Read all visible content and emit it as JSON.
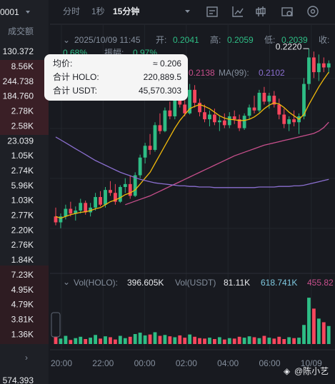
{
  "sidebar": {
    "symbol": "0001",
    "header": "成交额",
    "rows": [
      "130.372",
      "8.56K",
      "244.738",
      "184.760",
      "2.78K",
      "2.58K",
      "23.039",
      "1.05K",
      "2.74K",
      "5.96K",
      "1.03K",
      "2.77K",
      "2.20K",
      "2.76K",
      "1.84K",
      "7.23K",
      "4.95K",
      "4.79K",
      "3.81K",
      "1.36K"
    ],
    "footer": "574.393"
  },
  "toolbar": {
    "tabs": [
      "分时",
      "1秒",
      "15分钟"
    ]
  },
  "info": {
    "time": "2025/10/09 11:45",
    "open_label": "开:",
    "open": "0.2041",
    "high_label": "高:",
    "high": "0.2059",
    "low_label": "低:",
    "low": "0.2039",
    "close_label": "收:",
    "change": "0.68%",
    "amp_label": "振幅:",
    "amp": "0.97%"
  },
  "ma_legend": {
    "ma25_value": "0.2138",
    "ma99_label": "MA(99):",
    "ma99_value": "0.2102"
  },
  "tooltip": {
    "rows": [
      {
        "label": "均价:",
        "value": "≈ 0.206"
      },
      {
        "label": "合计 HOLO:",
        "value": "220,889.5"
      },
      {
        "label": "合计 USDT:",
        "value": "45,570.303"
      }
    ]
  },
  "volume_legend": {
    "holo_label": "Vol(HOLO):",
    "holo": "396.605K",
    "usdt_label": "Vol(USDT)",
    "usdt": "81.11K",
    "ma1": "618.741K",
    "ma2": "455.82"
  },
  "watermark": "@陈小艺",
  "chart_data": {
    "type": "candlestick",
    "ylim": [
      0.1842,
      0.2248
    ],
    "max_label": "0.2220",
    "up_color": "#2ebd85",
    "down_color": "#f6465d",
    "candles": {
      "open": [
        0.1935,
        0.1925,
        0.1935,
        0.1948,
        0.194,
        0.1945,
        0.1958,
        0.1942,
        0.195,
        0.1968,
        0.1955,
        0.198,
        0.1975,
        0.196,
        0.1985,
        0.199,
        0.197,
        0.2005,
        0.2035,
        0.2055,
        0.2048,
        0.209,
        0.208,
        0.2115,
        0.2105,
        0.2135,
        0.2125,
        0.211,
        0.215,
        0.2128,
        0.2112,
        0.21,
        0.2108,
        0.2095,
        0.2098,
        0.209,
        0.2105,
        0.21,
        0.2085,
        0.2106,
        0.212,
        0.2115,
        0.2145,
        0.213,
        0.214,
        0.2125,
        0.2108,
        0.2092,
        0.21,
        0.2095,
        0.2105,
        0.216,
        0.2205,
        0.218,
        0.2195,
        0.2188
      ],
      "high": [
        0.195,
        0.194,
        0.1955,
        0.196,
        0.1952,
        0.1965,
        0.1962,
        0.1958,
        0.1975,
        0.1978,
        0.1985,
        0.1995,
        0.199,
        0.1988,
        0.2,
        0.2005,
        0.201,
        0.204,
        0.206,
        0.2075,
        0.2095,
        0.211,
        0.212,
        0.213,
        0.214,
        0.215,
        0.2135,
        0.216,
        0.2158,
        0.2135,
        0.2125,
        0.2115,
        0.2118,
        0.2105,
        0.211,
        0.2112,
        0.2115,
        0.2108,
        0.211,
        0.2125,
        0.214,
        0.215,
        0.2155,
        0.2145,
        0.2148,
        0.2135,
        0.2118,
        0.2105,
        0.2115,
        0.211,
        0.217,
        0.222,
        0.2215,
        0.221,
        0.2205,
        0.22
      ],
      "low": [
        0.192,
        0.1915,
        0.193,
        0.1935,
        0.1928,
        0.194,
        0.1938,
        0.1935,
        0.1945,
        0.1952,
        0.195,
        0.197,
        0.1955,
        0.1958,
        0.1975,
        0.1965,
        0.1968,
        0.2,
        0.2025,
        0.204,
        0.2045,
        0.2075,
        0.2078,
        0.21,
        0.21,
        0.212,
        0.2105,
        0.2108,
        0.212,
        0.2105,
        0.2095,
        0.2088,
        0.209,
        0.208,
        0.2085,
        0.2085,
        0.2092,
        0.208,
        0.2082,
        0.21,
        0.211,
        0.2112,
        0.2125,
        0.2118,
        0.212,
        0.21,
        0.2085,
        0.208,
        0.2088,
        0.2075,
        0.21,
        0.215,
        0.217,
        0.2165,
        0.218,
        0.2178
      ],
      "close": [
        0.1925,
        0.1935,
        0.1948,
        0.194,
        0.1945,
        0.1958,
        0.1942,
        0.195,
        0.1968,
        0.1955,
        0.198,
        0.1975,
        0.196,
        0.1985,
        0.199,
        0.197,
        0.2005,
        0.2035,
        0.2055,
        0.2048,
        0.209,
        0.208,
        0.2115,
        0.2105,
        0.2135,
        0.2125,
        0.211,
        0.215,
        0.2128,
        0.2112,
        0.21,
        0.2108,
        0.2095,
        0.2098,
        0.209,
        0.2105,
        0.21,
        0.2085,
        0.2106,
        0.212,
        0.2115,
        0.2145,
        0.213,
        0.214,
        0.2125,
        0.2108,
        0.2092,
        0.21,
        0.2095,
        0.2105,
        0.216,
        0.2205,
        0.218,
        0.2195,
        0.2188,
        0.2195
      ]
    },
    "ma_lines": [
      {
        "color": "#f0b90b",
        "values": [
          0.1935,
          0.1932,
          0.1935,
          0.1938,
          0.194,
          0.1942,
          0.1943,
          0.1945,
          0.1948,
          0.195,
          0.1955,
          0.196,
          0.1963,
          0.1967,
          0.1972,
          0.1975,
          0.198,
          0.199,
          0.2,
          0.201,
          0.2025,
          0.204,
          0.2055,
          0.207,
          0.2085,
          0.2098,
          0.2108,
          0.2118,
          0.2122,
          0.2125,
          0.2122,
          0.2118,
          0.2112,
          0.2106,
          0.2102,
          0.21,
          0.2099,
          0.2098,
          0.2098,
          0.21,
          0.2104,
          0.211,
          0.2118,
          0.2124,
          0.2128,
          0.2126,
          0.212,
          0.2112,
          0.2106,
          0.21,
          0.2108,
          0.2125,
          0.214,
          0.2155,
          0.2168,
          0.218
        ]
      },
      {
        "color": "#c84f8c",
        "values": [
          null,
          null,
          null,
          null,
          null,
          null,
          null,
          null,
          null,
          null,
          null,
          null,
          null,
          null,
          0.1955,
          0.1958,
          0.1961,
          0.1964,
          0.1967,
          0.197,
          0.1974,
          0.1978,
          0.1982,
          0.1986,
          0.199,
          0.1994,
          0.1998,
          0.2002,
          0.2006,
          0.201,
          0.2014,
          0.2018,
          0.2022,
          0.2026,
          0.203,
          0.2034,
          0.2038,
          0.2041,
          0.2044,
          0.2047,
          0.205,
          0.2053,
          0.2056,
          0.2058,
          0.206,
          0.2062,
          0.2064,
          0.2066,
          0.2068,
          0.207,
          0.2072,
          0.2074,
          0.2076,
          0.208,
          0.2086,
          0.2095
        ]
      },
      {
        "color": "#8b6fd0",
        "values": [
          0.207,
          0.2065,
          0.206,
          0.2055,
          0.205,
          0.2045,
          0.204,
          0.2035,
          0.203,
          0.2026,
          0.2022,
          0.2018,
          0.2014,
          0.201,
          0.2007,
          0.2004,
          0.2001,
          0.1998,
          0.1996,
          0.1994,
          0.1992,
          0.1991,
          0.199,
          0.1989,
          0.1988,
          0.1987,
          0.1987,
          0.1986,
          0.1986,
          0.1985,
          0.1985,
          0.1985,
          0.1984,
          0.1984,
          0.1984,
          0.1984,
          0.1984,
          0.1984,
          0.1984,
          0.1984,
          0.1984,
          0.1985,
          0.1985,
          0.1985,
          0.1985,
          0.1986,
          0.1986,
          0.1986,
          0.1987,
          0.1987,
          0.1988,
          0.199,
          0.1992,
          0.1994,
          0.1996,
          0.1998
        ]
      }
    ],
    "volume": {
      "ylim": [
        0,
        1100
      ],
      "values": [
        150,
        120,
        180,
        90,
        130,
        160,
        110,
        140,
        200,
        120,
        170,
        150,
        100,
        180,
        130,
        160,
        220,
        250,
        190,
        210,
        260,
        180,
        200,
        170,
        150,
        190,
        140,
        210,
        160,
        130,
        120,
        140,
        110,
        150,
        100,
        130,
        120,
        160,
        140,
        170,
        150,
        130,
        180,
        140,
        120,
        160,
        110,
        150,
        130,
        140,
        420,
        1020,
        780,
        560,
        480,
        396.605
      ]
    },
    "x_labels": [
      "20:00",
      "22:00",
      "00:00",
      "02:00",
      "04:00",
      "06:00",
      "10/09"
    ]
  }
}
